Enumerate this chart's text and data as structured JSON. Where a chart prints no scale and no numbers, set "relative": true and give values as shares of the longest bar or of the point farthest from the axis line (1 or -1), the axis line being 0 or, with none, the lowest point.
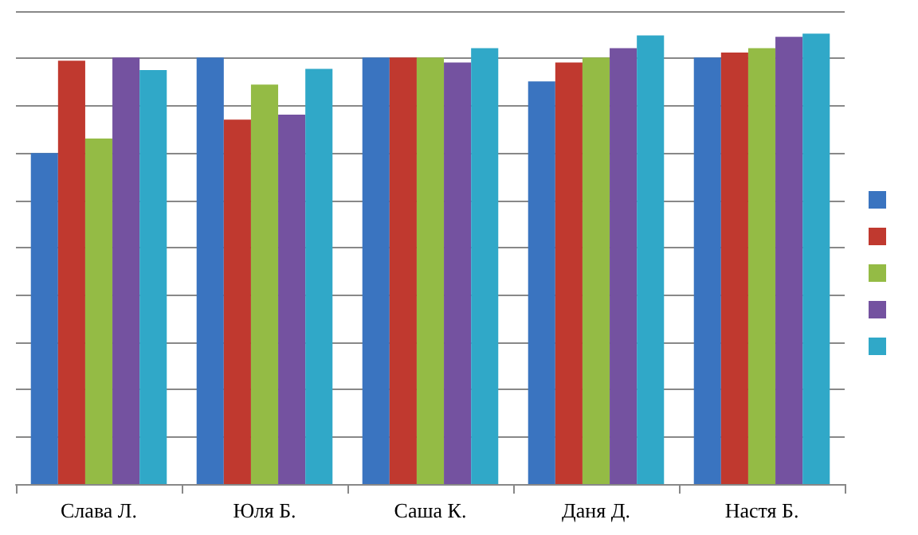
{
  "chart_data": {
    "type": "bar",
    "relative": true,
    "categories": [
      "Слава Л.",
      "Юля Б.",
      "Саша К.",
      "Даня Д.",
      "Настя Б."
    ],
    "series": [
      {
        "color": "#3a74c0",
        "values": [
          0.735,
          0.947,
          0.947,
          0.894,
          0.947
        ]
      },
      {
        "color": "#c0392f",
        "values": [
          0.94,
          0.809,
          0.947,
          0.936,
          0.958
        ]
      },
      {
        "color": "#94bb45",
        "values": [
          0.767,
          0.887,
          0.947,
          0.947,
          0.968
        ]
      },
      {
        "color": "#7452a0",
        "values": [
          0.947,
          0.82,
          0.936,
          0.968,
          0.993
        ]
      },
      {
        "color": "#30a8c8",
        "values": [
          0.919,
          0.922,
          0.968,
          0.996,
          1
        ]
      }
    ],
    "grid": "y"
  }
}
